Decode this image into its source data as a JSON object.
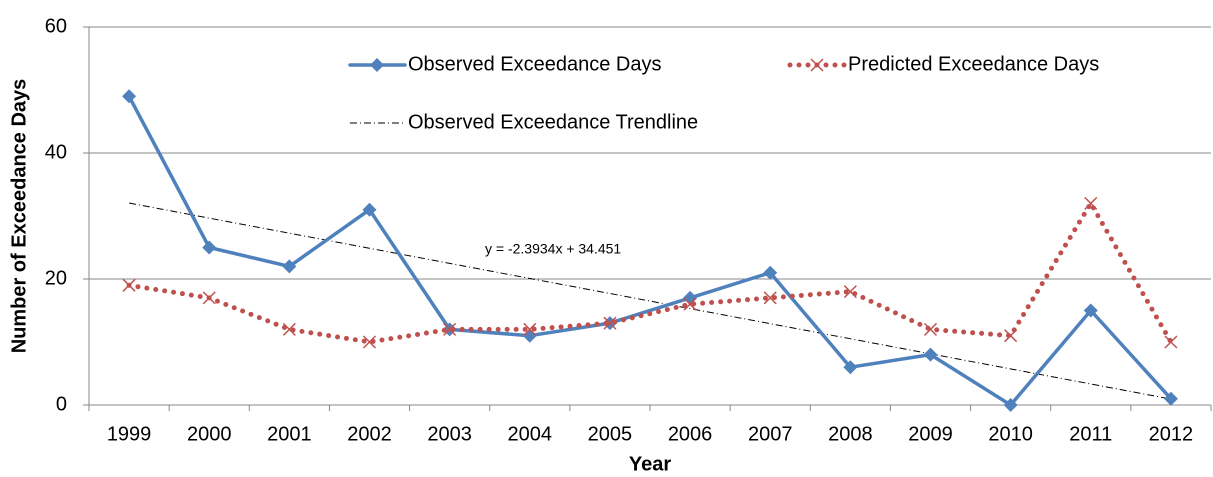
{
  "chart_data": {
    "type": "line",
    "x_label": "Year",
    "y_label": "Number of Exceedance Days",
    "categories": [
      "1999",
      "2000",
      "2001",
      "2002",
      "2003",
      "2004",
      "2005",
      "2006",
      "2007",
      "2008",
      "2009",
      "2010",
      "2011",
      "2012"
    ],
    "series": [
      {
        "name": "Observed Exceedance Days",
        "color": "#4f81bd",
        "marker": "diamond",
        "values": [
          49,
          25,
          22,
          31,
          12,
          11,
          13,
          17,
          21,
          6,
          8,
          0,
          15,
          1
        ]
      },
      {
        "name": "Predicted Exceedance Days",
        "color": "#c0504d",
        "marker": "x",
        "values": [
          19,
          17,
          12,
          10,
          12,
          12,
          13,
          16,
          17,
          18,
          12,
          11,
          32,
          10
        ]
      }
    ],
    "trendline": {
      "name": "Observed Exceedance Trendline",
      "label": "y = -2.3934x + 34.451",
      "slope": -2.3934,
      "intercept": 34.451,
      "color": "#000000"
    },
    "ylim": [
      0,
      60
    ],
    "yticks": [
      0,
      20,
      40,
      60
    ],
    "grid": true
  }
}
